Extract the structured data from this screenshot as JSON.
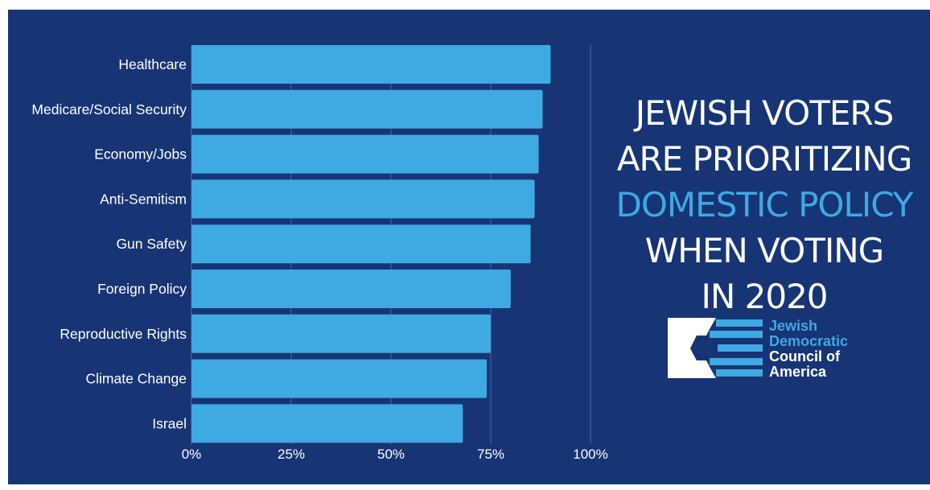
{
  "headline": {
    "line1": "JEWISH VOTERS",
    "line2": "ARE PRIORITIZING",
    "line3": "DOMESTIC POLICY",
    "line4": "WHEN VOTING",
    "line5": "IN 2020"
  },
  "logo": {
    "line1": "Jewish",
    "line2": "Democratic",
    "line3": "Council of",
    "line4": "America"
  },
  "colors": {
    "background": "#173575",
    "bar": "#3fa9e2",
    "accent": "#3fa9e2",
    "text": "#ffffff"
  },
  "chart_data": {
    "type": "bar",
    "orientation": "horizontal",
    "categories": [
      "Healthcare",
      "Medicare/Social Security",
      "Economy/Jobs",
      "Anti-Semitism",
      "Gun Safety",
      "Foreign Policy",
      "Reproductive Rights",
      "Climate Change",
      "Israel"
    ],
    "values": [
      90,
      88,
      87,
      86,
      85,
      80,
      75,
      74,
      68
    ],
    "xlim": [
      0,
      100
    ],
    "x_ticks": [
      0,
      25,
      50,
      75,
      100
    ],
    "x_tick_labels": [
      "0%",
      "25%",
      "50%",
      "75%",
      "100%"
    ],
    "grid": true
  }
}
